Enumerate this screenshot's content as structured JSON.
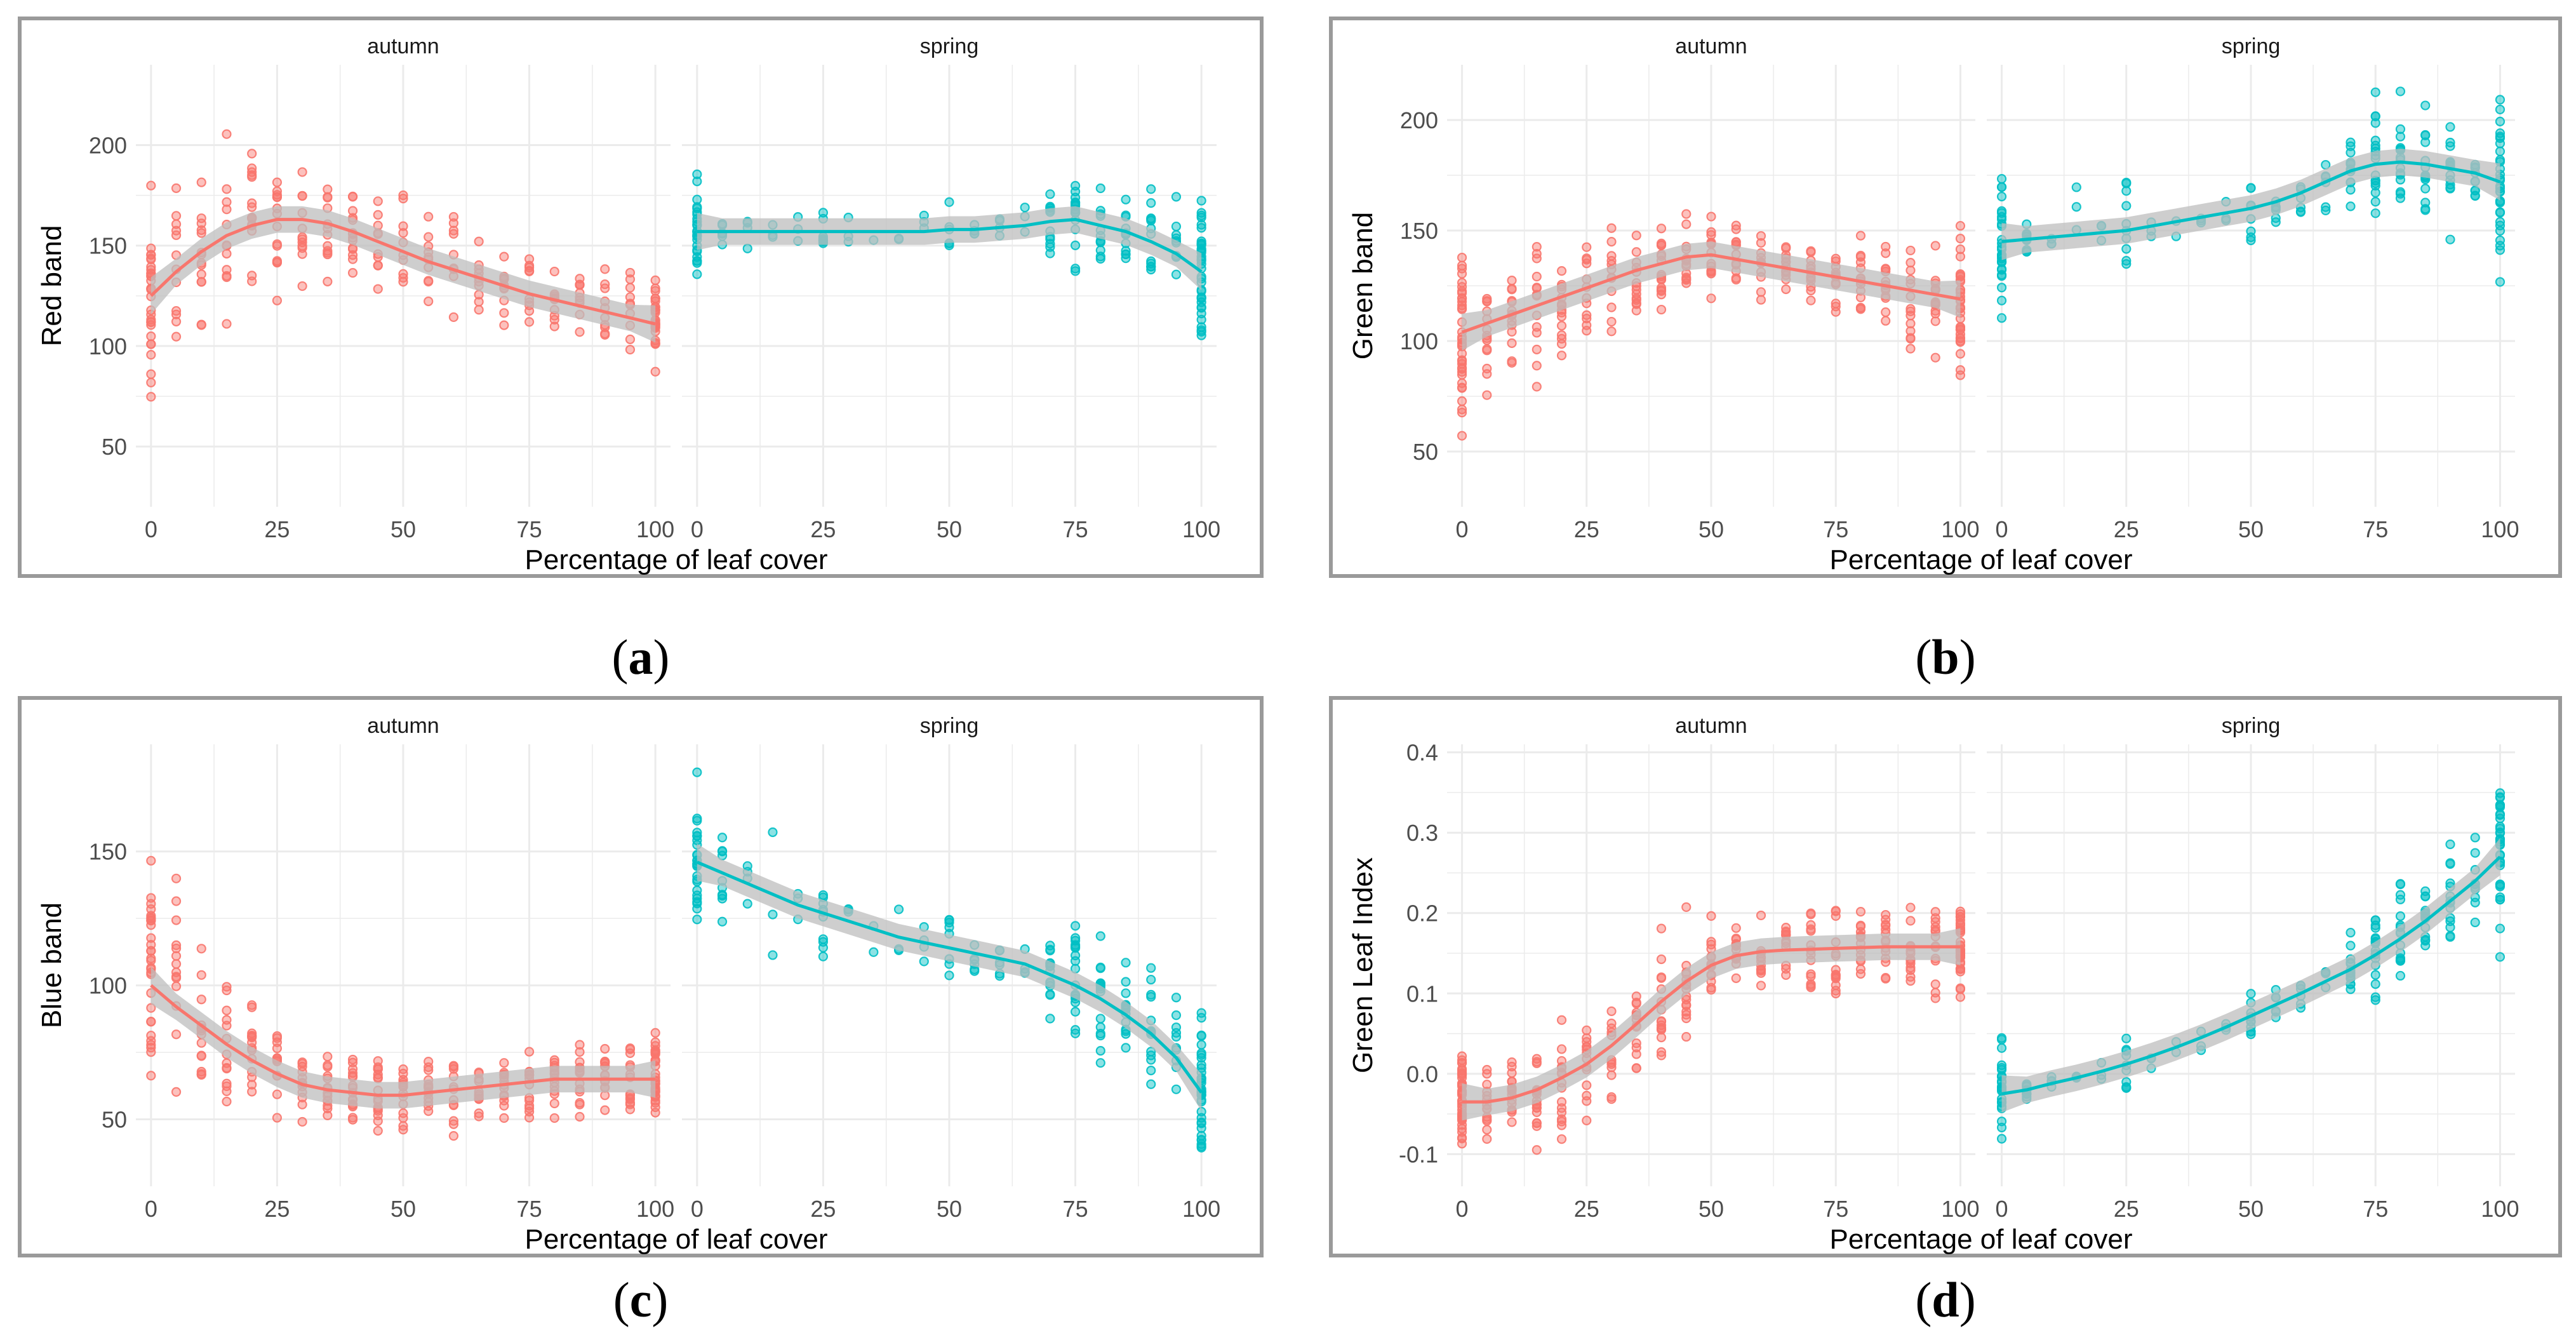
{
  "colors": {
    "autumn": "#F8766D",
    "spring": "#00BFC4",
    "grid": "#ebebeb",
    "ribbon": "#bdbdbd",
    "frame": "#9a9a9a"
  },
  "chart_data": [
    {
      "id": "a",
      "type": "scatter",
      "caption_letter": "a",
      "xlabel": "Percentage of leaf cover",
      "ylabel": "Red band",
      "xlim": [
        -3,
        103
      ],
      "ylim": [
        20,
        240
      ],
      "xticks": [
        0,
        25,
        50,
        75,
        100
      ],
      "xtick_labels": [
        "0",
        "25",
        "50",
        "75",
        "100"
      ],
      "yticks": [
        50,
        100,
        150,
        200
      ],
      "ytick_labels": [
        "50",
        "100",
        "150",
        "200"
      ],
      "facets": [
        {
          "name": "autumn",
          "label": "autumn",
          "x": [
            0,
            5,
            10,
            15,
            20,
            25,
            30,
            35,
            40,
            45,
            50,
            55,
            60,
            65,
            70,
            75,
            80,
            85,
            90,
            95,
            100
          ],
          "mean": [
            125,
            138,
            148,
            155,
            160,
            163,
            163,
            162,
            160,
            155,
            150,
            145,
            140,
            135,
            130,
            127,
            123,
            120,
            117,
            114,
            111
          ],
          "spread": [
            45,
            40,
            38,
            40,
            45,
            45,
            35,
            30,
            30,
            30,
            30,
            30,
            30,
            30,
            25,
            25,
            25,
            25,
            25,
            25,
            25
          ],
          "n": [
            30,
            12,
            14,
            12,
            16,
            14,
            12,
            12,
            14,
            10,
            10,
            10,
            9,
            10,
            10,
            10,
            10,
            10,
            10,
            10,
            28
          ],
          "smooth": [
            125,
            137,
            147,
            155,
            160,
            163,
            163,
            161,
            157,
            152,
            147,
            142,
            138,
            134,
            130,
            126,
            123,
            120,
            117,
            114,
            111
          ]
        },
        {
          "name": "spring",
          "label": "spring",
          "x": [
            0,
            5,
            10,
            15,
            20,
            25,
            30,
            35,
            40,
            45,
            50,
            55,
            60,
            65,
            70,
            75,
            80,
            85,
            90,
            95,
            100
          ],
          "mean": [
            157,
            157,
            157,
            157,
            157,
            157,
            157,
            157,
            157,
            158,
            158,
            159,
            160,
            161,
            162,
            162,
            160,
            157,
            152,
            145,
            137
          ],
          "spread": [
            25,
            15,
            10,
            12,
            10,
            14,
            10,
            8,
            10,
            10,
            18,
            10,
            10,
            10,
            20,
            25,
            25,
            20,
            30,
            30,
            45
          ],
          "n": [
            26,
            6,
            4,
            3,
            3,
            8,
            3,
            1,
            2,
            3,
            6,
            4,
            4,
            3,
            12,
            16,
            12,
            12,
            12,
            10,
            36
          ],
          "smooth": [
            157,
            157,
            157,
            157,
            157,
            157,
            157,
            157,
            157,
            157,
            158,
            158,
            159,
            160,
            162,
            163,
            160,
            157,
            152,
            146,
            137
          ]
        }
      ]
    },
    {
      "id": "b",
      "type": "scatter",
      "caption_letter": "b",
      "xlabel": "Percentage of leaf cover",
      "ylabel": "Green band",
      "xlim": [
        -3,
        103
      ],
      "ylim": [
        25,
        225
      ],
      "xticks": [
        0,
        25,
        50,
        75,
        100
      ],
      "xtick_labels": [
        "0",
        "25",
        "50",
        "75",
        "100"
      ],
      "yticks": [
        50,
        100,
        150,
        200
      ],
      "ytick_labels": [
        "50",
        "100",
        "150",
        "200"
      ],
      "facets": [
        {
          "name": "autumn",
          "label": "autumn",
          "x": [
            0,
            5,
            10,
            15,
            20,
            25,
            30,
            35,
            40,
            45,
            50,
            55,
            60,
            65,
            70,
            75,
            80,
            85,
            90,
            95,
            100
          ],
          "mean": [
            105,
            108,
            112,
            116,
            120,
            124,
            128,
            132,
            135,
            138,
            139,
            137,
            135,
            133,
            131,
            129,
            127,
            125,
            123,
            121,
            119
          ],
          "spread": [
            45,
            40,
            30,
            35,
            40,
            30,
            25,
            25,
            20,
            20,
            20,
            20,
            20,
            18,
            18,
            20,
            20,
            20,
            25,
            30,
            35
          ],
          "n": [
            36,
            14,
            14,
            14,
            16,
            12,
            12,
            14,
            16,
            14,
            14,
            12,
            12,
            12,
            12,
            14,
            14,
            14,
            14,
            14,
            32
          ],
          "smooth": [
            104,
            108,
            112,
            116,
            120,
            124,
            128,
            132,
            135,
            138,
            139,
            137,
            135,
            133,
            131,
            129,
            127,
            125,
            123,
            121,
            119
          ]
        },
        {
          "name": "spring",
          "label": "spring",
          "x": [
            0,
            5,
            10,
            15,
            20,
            25,
            30,
            35,
            40,
            45,
            50,
            55,
            60,
            65,
            70,
            75,
            80,
            85,
            90,
            95,
            100
          ],
          "mean": [
            145,
            146,
            147,
            148,
            149,
            150,
            152,
            154,
            156,
            158,
            160,
            163,
            167,
            172,
            177,
            180,
            181,
            180,
            178,
            176,
            172
          ],
          "spread": [
            35,
            10,
            8,
            25,
            8,
            25,
            10,
            8,
            10,
            10,
            25,
            15,
            15,
            15,
            20,
            30,
            30,
            25,
            25,
            20,
            40
          ],
          "n": [
            28,
            12,
            3,
            3,
            3,
            10,
            3,
            2,
            3,
            3,
            8,
            6,
            6,
            6,
            12,
            18,
            16,
            14,
            14,
            10,
            30
          ],
          "smooth": [
            145,
            146,
            147,
            148,
            149,
            150,
            152,
            154,
            156,
            158,
            160,
            163,
            167,
            172,
            177,
            180,
            181,
            180,
            178,
            176,
            172
          ]
        }
      ]
    },
    {
      "id": "c",
      "type": "scatter",
      "caption_letter": "c",
      "xlabel": "Percentage of leaf cover",
      "ylabel": "Blue band",
      "xlim": [
        -3,
        103
      ],
      "ylim": [
        25,
        190
      ],
      "xticks": [
        0,
        25,
        50,
        75,
        100
      ],
      "xtick_labels": [
        "0",
        "25",
        "50",
        "75",
        "100"
      ],
      "yticks": [
        50,
        100,
        150
      ],
      "ytick_labels": [
        "50",
        "100",
        "150"
      ],
      "facets": [
        {
          "name": "autumn",
          "label": "autumn",
          "x": [
            0,
            5,
            10,
            15,
            20,
            25,
            30,
            35,
            40,
            45,
            50,
            55,
            60,
            65,
            70,
            75,
            80,
            85,
            90,
            95,
            100
          ],
          "mean": [
            100,
            93,
            85,
            78,
            73,
            68,
            64,
            62,
            60,
            59,
            59,
            60,
            61,
            63,
            64,
            65,
            65,
            65,
            66,
            66,
            66
          ],
          "spread": [
            40,
            45,
            30,
            25,
            25,
            20,
            15,
            15,
            15,
            15,
            15,
            15,
            15,
            15,
            15,
            15,
            15,
            15,
            15,
            15,
            15
          ],
          "n": [
            30,
            14,
            14,
            14,
            14,
            12,
            12,
            14,
            16,
            16,
            14,
            14,
            12,
            12,
            14,
            14,
            14,
            14,
            14,
            14,
            30
          ],
          "smooth": [
            100,
            92,
            85,
            78,
            72,
            67,
            63,
            61,
            60,
            59,
            59,
            60,
            61,
            62,
            63,
            64,
            65,
            65,
            65,
            65,
            65
          ]
        },
        {
          "name": "spring",
          "label": "spring",
          "x": [
            0,
            5,
            10,
            15,
            20,
            25,
            30,
            35,
            40,
            45,
            50,
            55,
            60,
            65,
            70,
            75,
            80,
            85,
            90,
            95,
            100
          ],
          "mean": [
            146,
            142,
            138,
            134,
            130,
            126,
            123,
            120,
            118,
            116,
            114,
            112,
            110,
            108,
            104,
            100,
            95,
            90,
            84,
            75,
            60
          ],
          "spread": [
            30,
            20,
            10,
            25,
            10,
            20,
            10,
            8,
            10,
            10,
            15,
            10,
            10,
            10,
            20,
            25,
            25,
            25,
            30,
            25,
            35
          ],
          "n": [
            26,
            10,
            4,
            3,
            3,
            10,
            3,
            2,
            3,
            4,
            8,
            6,
            6,
            4,
            14,
            18,
            16,
            14,
            14,
            10,
            34
          ],
          "smooth": [
            146,
            142,
            138,
            134,
            130,
            127,
            124,
            121,
            118,
            116,
            114,
            112,
            110,
            108,
            104,
            100,
            95,
            89,
            82,
            73,
            60
          ]
        }
      ]
    },
    {
      "id": "d",
      "type": "scatter",
      "caption_letter": "d",
      "xlabel": "Percentage of leaf cover",
      "ylabel": "Green Leaf Index",
      "xlim": [
        -3,
        103
      ],
      "ylim": [
        -0.14,
        0.41
      ],
      "xticks": [
        0,
        25,
        50,
        75,
        100
      ],
      "xtick_labels": [
        "0",
        "25",
        "50",
        "75",
        "100"
      ],
      "yticks": [
        -0.1,
        0.0,
        0.1,
        0.2,
        0.3,
        0.4
      ],
      "ytick_labels": [
        "-0.1",
        "0.0",
        "0.1",
        "0.2",
        "0.3",
        "0.4"
      ],
      "facets": [
        {
          "name": "autumn",
          "label": "autumn",
          "x": [
            0,
            5,
            10,
            15,
            20,
            25,
            30,
            35,
            40,
            45,
            50,
            55,
            60,
            65,
            70,
            75,
            80,
            85,
            90,
            95,
            100
          ],
          "mean": [
            -0.035,
            -0.035,
            -0.03,
            -0.02,
            -0.01,
            0.01,
            0.03,
            0.06,
            0.09,
            0.115,
            0.135,
            0.148,
            0.152,
            0.155,
            0.156,
            0.157,
            0.158,
            0.158,
            0.158,
            0.158,
            0.158
          ],
          "spread": [
            0.06,
            0.05,
            0.06,
            0.07,
            0.08,
            0.08,
            0.08,
            0.08,
            0.1,
            0.08,
            0.06,
            0.05,
            0.05,
            0.05,
            0.06,
            0.06,
            0.06,
            0.06,
            0.06,
            0.06,
            0.07
          ],
          "n": [
            36,
            14,
            16,
            18,
            16,
            14,
            12,
            14,
            16,
            16,
            14,
            14,
            12,
            12,
            14,
            14,
            14,
            14,
            14,
            14,
            34
          ],
          "smooth": [
            -0.035,
            -0.035,
            -0.03,
            -0.02,
            -0.005,
            0.012,
            0.035,
            0.062,
            0.09,
            0.115,
            0.135,
            0.147,
            0.152,
            0.154,
            0.155,
            0.156,
            0.157,
            0.158,
            0.158,
            0.158,
            0.158
          ]
        },
        {
          "name": "spring",
          "label": "spring",
          "x": [
            0,
            5,
            10,
            15,
            20,
            25,
            30,
            35,
            40,
            45,
            50,
            55,
            60,
            65,
            70,
            75,
            80,
            85,
            90,
            95,
            100
          ],
          "mean": [
            -0.025,
            -0.02,
            -0.012,
            -0.005,
            0.003,
            0.012,
            0.022,
            0.033,
            0.045,
            0.058,
            0.072,
            0.086,
            0.1,
            0.115,
            0.13,
            0.148,
            0.168,
            0.19,
            0.215,
            0.24,
            0.27
          ],
          "spread": [
            0.06,
            0.02,
            0.02,
            0.02,
            0.02,
            0.05,
            0.02,
            0.02,
            0.02,
            0.02,
            0.05,
            0.03,
            0.03,
            0.03,
            0.05,
            0.06,
            0.07,
            0.06,
            0.07,
            0.06,
            0.12
          ],
          "n": [
            24,
            10,
            4,
            3,
            3,
            10,
            3,
            2,
            3,
            3,
            10,
            6,
            6,
            4,
            14,
            18,
            16,
            14,
            14,
            10,
            32
          ],
          "smooth": [
            -0.025,
            -0.02,
            -0.012,
            -0.005,
            0.003,
            0.012,
            0.022,
            0.033,
            0.045,
            0.058,
            0.072,
            0.086,
            0.1,
            0.115,
            0.13,
            0.148,
            0.168,
            0.19,
            0.215,
            0.24,
            0.27
          ]
        }
      ]
    }
  ]
}
